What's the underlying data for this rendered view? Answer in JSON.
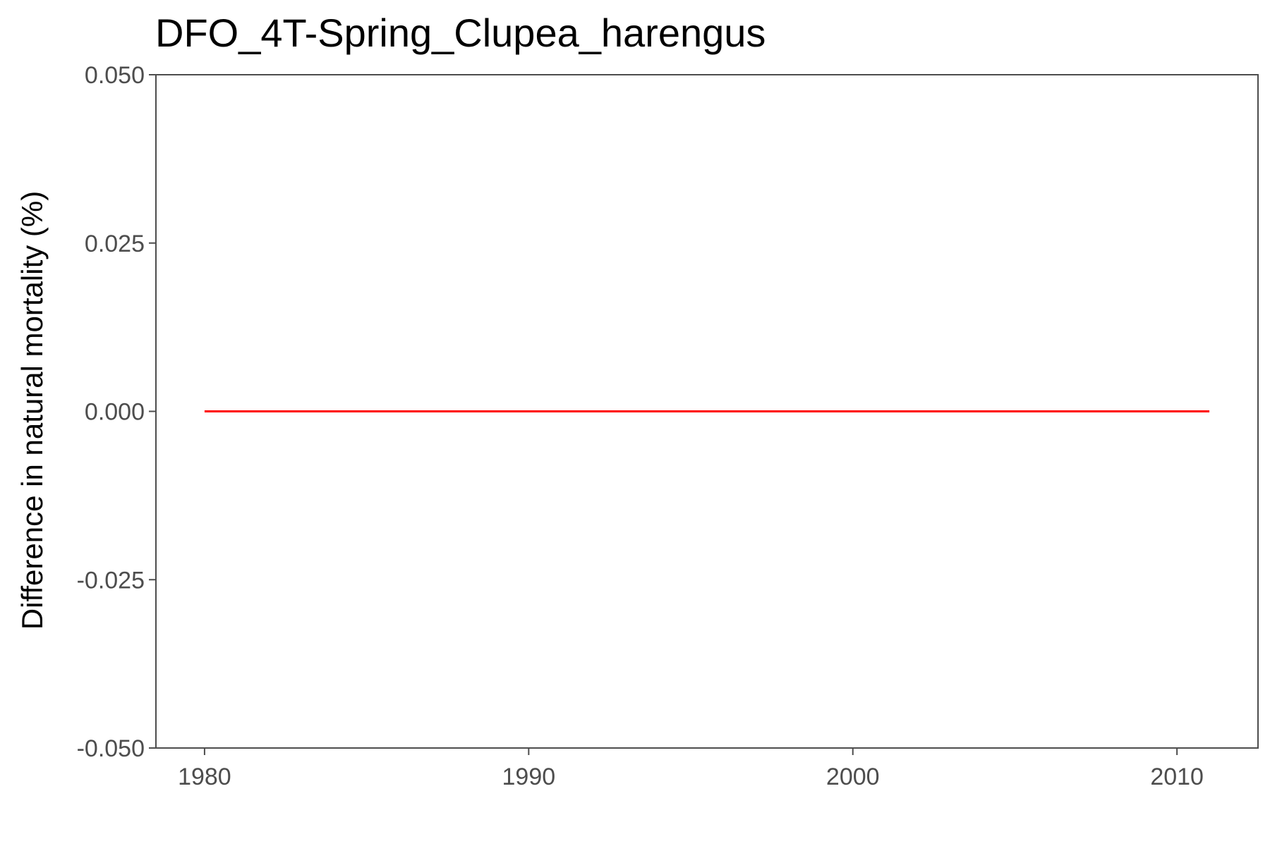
{
  "chart_data": {
    "type": "line",
    "title": "DFO_4T-Spring_Clupea_harengus",
    "xlabel": "",
    "ylabel": "Difference in natural mortality (%)",
    "xlim": [
      1978.5,
      2012.5
    ],
    "ylim": [
      -0.05,
      0.05
    ],
    "x_ticks": [
      1980,
      1990,
      2000,
      2010
    ],
    "x_tick_labels": [
      "1980",
      "1990",
      "2000",
      "2010"
    ],
    "y_ticks": [
      -0.05,
      -0.025,
      0,
      0.025,
      0.05
    ],
    "y_tick_labels": [
      "-0.050",
      "-0.025",
      "0.000",
      "0.025",
      "0.050"
    ],
    "grid": false,
    "legend": "none",
    "series": [
      {
        "color": "#ff0000",
        "x": [
          1980,
          1981,
          1982,
          1983,
          1984,
          1985,
          1986,
          1987,
          1988,
          1989,
          1990,
          1991,
          1992,
          1993,
          1994,
          1995,
          1996,
          1997,
          1998,
          1999,
          2000,
          2001,
          2002,
          2003,
          2004,
          2005,
          2006,
          2007,
          2008,
          2009,
          2010,
          2011
        ],
        "y": [
          0,
          0,
          0,
          0,
          0,
          0,
          0,
          0,
          0,
          0,
          0,
          0,
          0,
          0,
          0,
          0,
          0,
          0,
          0,
          0,
          0,
          0,
          0,
          0,
          0,
          0,
          0,
          0,
          0,
          0,
          0,
          0
        ]
      }
    ]
  }
}
